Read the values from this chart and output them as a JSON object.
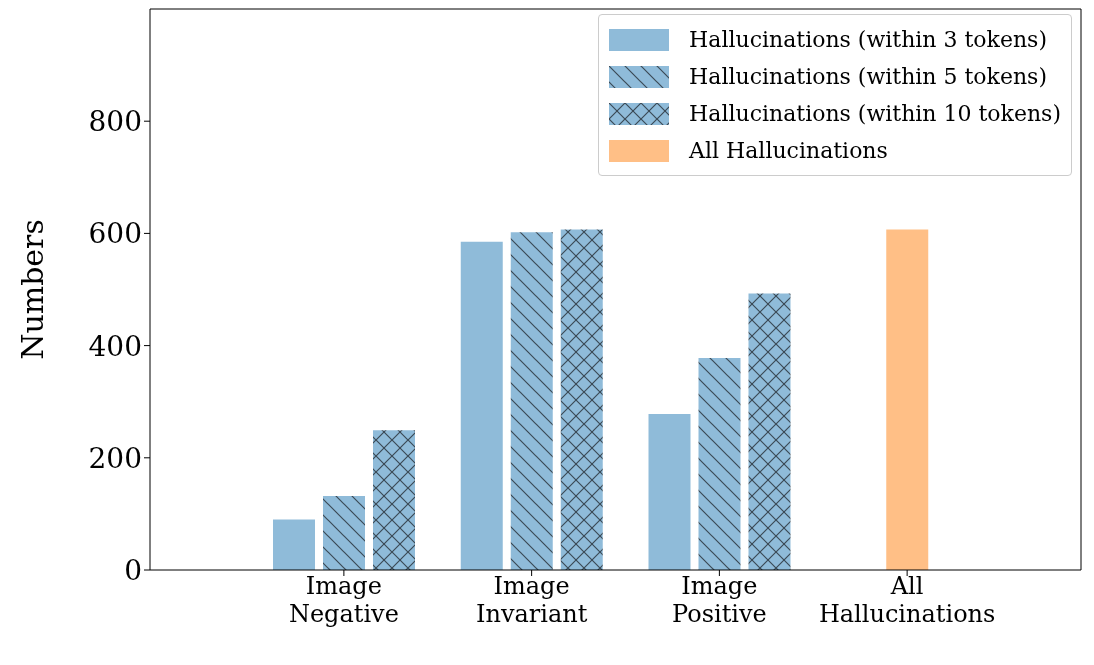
{
  "chart_data": {
    "type": "bar",
    "ylabel": "Numbers",
    "categories": [
      "Image\nNegative",
      "Image\nInvariant",
      "Image\nPositive",
      "All\nHallucinations"
    ],
    "series": [
      {
        "name": "Hallucinations (within 3 tokens)",
        "color": "#8fbbd9",
        "values": [
          90,
          585,
          278,
          null
        ]
      },
      {
        "name": "Hallucinations (within 5 tokens)",
        "color": "#8fbbd9",
        "values": [
          132,
          602,
          378,
          null
        ]
      },
      {
        "name": "Hallucinations (within 10 tokens)",
        "color": "#8fbbd9",
        "values": [
          249,
          607,
          493,
          null
        ]
      },
      {
        "name": "All Hallucinations",
        "color": "#ffbf86",
        "values": [
          null,
          null,
          null,
          607
        ]
      }
    ],
    "ylim": [
      0,
      1000
    ],
    "yticks": [
      0,
      200,
      400,
      600,
      800
    ],
    "grid": false,
    "legend": "top right"
  }
}
